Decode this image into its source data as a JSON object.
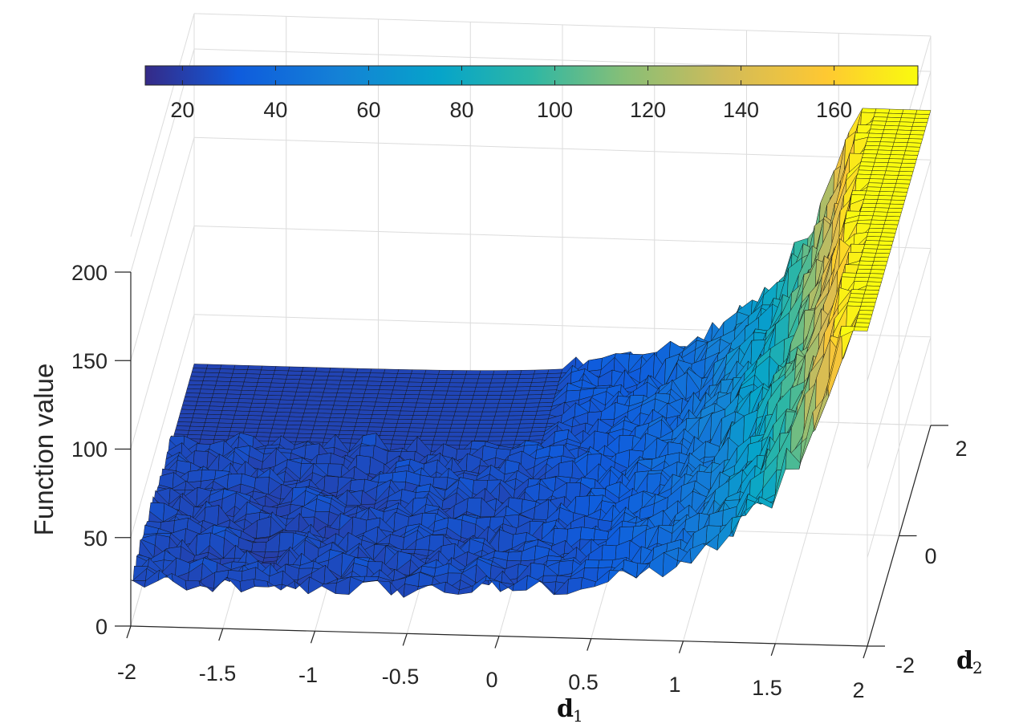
{
  "chart_data": {
    "type": "surface",
    "zlabel": "Function value",
    "xlabel": {
      "symbol": "d",
      "subscript": "1"
    },
    "ylabel": {
      "symbol": "d",
      "subscript": "2"
    },
    "xlim": [
      -2,
      2
    ],
    "ylim": [
      -2,
      2
    ],
    "zlim": [
      0,
      200
    ],
    "x_ticks": [
      "-2",
      "-1.5",
      "-1",
      "-0.5",
      "0",
      "0.5",
      "1",
      "1.5",
      "2"
    ],
    "y_ticks": [
      "-2",
      "0",
      "2"
    ],
    "z_ticks": [
      "0",
      "50",
      "100",
      "150",
      "200"
    ],
    "colorbar": {
      "location": "top",
      "colormap": "parula",
      "range": [
        12,
        178
      ],
      "ticks": [
        "20",
        "40",
        "60",
        "80",
        "100",
        "120",
        "140",
        "160"
      ]
    },
    "grid": true,
    "surface_model": {
      "description_of_shape": "flat plateau ~150 for d1 < 0 on far side, noisy valley ~20-40 near side, rising steeply toward d1 = 2",
      "min_value": 12,
      "max_value": 178
    }
  }
}
